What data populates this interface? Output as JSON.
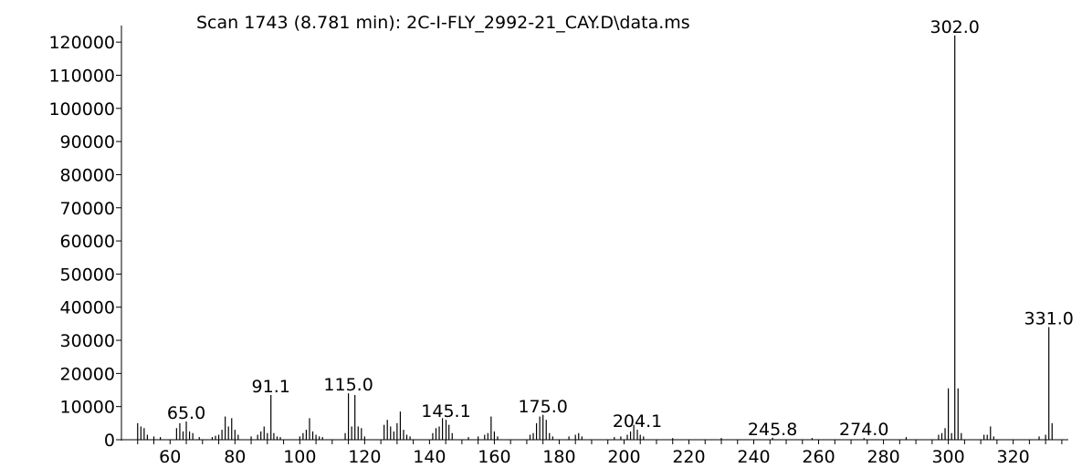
{
  "chart_data": {
    "type": "bar",
    "title": "Scan 1743 (8.781 min): 2C-I-FLY_2992-21_CAY.D\\data.ms",
    "xlabel": "",
    "ylabel": "",
    "xlim": [
      45,
      337
    ],
    "ylim": [
      0,
      125000
    ],
    "x_ticks": [
      60,
      80,
      100,
      120,
      140,
      160,
      180,
      200,
      220,
      240,
      260,
      280,
      300,
      320
    ],
    "y_ticks": [
      0,
      10000,
      20000,
      30000,
      40000,
      50000,
      60000,
      70000,
      80000,
      90000,
      100000,
      110000,
      120000
    ],
    "peaks": [
      {
        "x": 50,
        "y": 5000
      },
      {
        "x": 51,
        "y": 4000
      },
      {
        "x": 52,
        "y": 3500
      },
      {
        "x": 53,
        "y": 1500
      },
      {
        "x": 55,
        "y": 1000
      },
      {
        "x": 57,
        "y": 800
      },
      {
        "x": 62,
        "y": 3500
      },
      {
        "x": 63,
        "y": 5000
      },
      {
        "x": 64,
        "y": 2500
      },
      {
        "x": 65,
        "y": 5500
      },
      {
        "x": 66,
        "y": 2500
      },
      {
        "x": 67,
        "y": 2000
      },
      {
        "x": 69,
        "y": 800
      },
      {
        "x": 73,
        "y": 800
      },
      {
        "x": 74,
        "y": 1200
      },
      {
        "x": 75,
        "y": 1500
      },
      {
        "x": 76,
        "y": 3000
      },
      {
        "x": 77,
        "y": 7000
      },
      {
        "x": 78,
        "y": 4000
      },
      {
        "x": 79,
        "y": 6500
      },
      {
        "x": 80,
        "y": 3000
      },
      {
        "x": 81,
        "y": 1500
      },
      {
        "x": 85,
        "y": 1000
      },
      {
        "x": 87,
        "y": 1500
      },
      {
        "x": 88,
        "y": 2500
      },
      {
        "x": 89,
        "y": 4000
      },
      {
        "x": 90,
        "y": 2000
      },
      {
        "x": 91.1,
        "y": 13500
      },
      {
        "x": 92,
        "y": 2000
      },
      {
        "x": 93,
        "y": 1000
      },
      {
        "x": 94,
        "y": 800
      },
      {
        "x": 100,
        "y": 1000
      },
      {
        "x": 101,
        "y": 2000
      },
      {
        "x": 102,
        "y": 3000
      },
      {
        "x": 103,
        "y": 6500
      },
      {
        "x": 104,
        "y": 2500
      },
      {
        "x": 105,
        "y": 1500
      },
      {
        "x": 106,
        "y": 1000
      },
      {
        "x": 107,
        "y": 800
      },
      {
        "x": 114,
        "y": 2000
      },
      {
        "x": 115,
        "y": 14000
      },
      {
        "x": 116,
        "y": 4000
      },
      {
        "x": 117,
        "y": 13500
      },
      {
        "x": 118,
        "y": 4000
      },
      {
        "x": 119,
        "y": 3500
      },
      {
        "x": 120,
        "y": 1000
      },
      {
        "x": 126,
        "y": 4500
      },
      {
        "x": 127,
        "y": 6000
      },
      {
        "x": 128,
        "y": 4000
      },
      {
        "x": 129,
        "y": 2500
      },
      {
        "x": 130,
        "y": 5000
      },
      {
        "x": 131,
        "y": 8500
      },
      {
        "x": 132,
        "y": 3000
      },
      {
        "x": 133,
        "y": 1500
      },
      {
        "x": 134,
        "y": 1000
      },
      {
        "x": 141,
        "y": 2000
      },
      {
        "x": 142,
        "y": 3500
      },
      {
        "x": 143,
        "y": 4000
      },
      {
        "x": 144,
        "y": 6500
      },
      {
        "x": 145.1,
        "y": 6000
      },
      {
        "x": 146,
        "y": 4500
      },
      {
        "x": 147,
        "y": 2000
      },
      {
        "x": 152,
        "y": 800
      },
      {
        "x": 155,
        "y": 1000
      },
      {
        "x": 157,
        "y": 1500
      },
      {
        "x": 158,
        "y": 2000
      },
      {
        "x": 159,
        "y": 7000
      },
      {
        "x": 160,
        "y": 2500
      },
      {
        "x": 161,
        "y": 1000
      },
      {
        "x": 171,
        "y": 1500
      },
      {
        "x": 172,
        "y": 2000
      },
      {
        "x": 173,
        "y": 5000
      },
      {
        "x": 174,
        "y": 7000
      },
      {
        "x": 175,
        "y": 7500
      },
      {
        "x": 176,
        "y": 6000
      },
      {
        "x": 177,
        "y": 2000
      },
      {
        "x": 178,
        "y": 1000
      },
      {
        "x": 183,
        "y": 1000
      },
      {
        "x": 185,
        "y": 1500
      },
      {
        "x": 186,
        "y": 2000
      },
      {
        "x": 187,
        "y": 1000
      },
      {
        "x": 197,
        "y": 800
      },
      {
        "x": 199,
        "y": 1000
      },
      {
        "x": 201,
        "y": 1500
      },
      {
        "x": 202,
        "y": 2500
      },
      {
        "x": 203,
        "y": 4500
      },
      {
        "x": 204.1,
        "y": 3000
      },
      {
        "x": 205,
        "y": 1500
      },
      {
        "x": 206,
        "y": 1000
      },
      {
        "x": 215,
        "y": 500
      },
      {
        "x": 230,
        "y": 500
      },
      {
        "x": 245.8,
        "y": 600
      },
      {
        "x": 258,
        "y": 500
      },
      {
        "x": 274,
        "y": 500
      },
      {
        "x": 287,
        "y": 800
      },
      {
        "x": 297,
        "y": 1500
      },
      {
        "x": 298,
        "y": 2000
      },
      {
        "x": 299,
        "y": 3500
      },
      {
        "x": 300,
        "y": 15500
      },
      {
        "x": 301,
        "y": 2000
      },
      {
        "x": 302,
        "y": 122000
      },
      {
        "x": 303,
        "y": 15500
      },
      {
        "x": 304,
        "y": 2000
      },
      {
        "x": 311,
        "y": 1500
      },
      {
        "x": 312,
        "y": 1500
      },
      {
        "x": 313,
        "y": 4000
      },
      {
        "x": 314,
        "y": 1000
      },
      {
        "x": 328,
        "y": 1000
      },
      {
        "x": 330,
        "y": 1500
      },
      {
        "x": 331,
        "y": 34000
      },
      {
        "x": 332,
        "y": 5000
      }
    ],
    "peak_labels": [
      {
        "x": 65,
        "y": 5500,
        "text": "65.0"
      },
      {
        "x": 91.1,
        "y": 13500,
        "text": "91.1"
      },
      {
        "x": 115,
        "y": 14000,
        "text": "115.0"
      },
      {
        "x": 145.1,
        "y": 6000,
        "text": "145.1"
      },
      {
        "x": 175,
        "y": 7500,
        "text": "175.0"
      },
      {
        "x": 204.1,
        "y": 3000,
        "text": "204.1"
      },
      {
        "x": 245.8,
        "y": 600,
        "text": "245.8"
      },
      {
        "x": 274,
        "y": 500,
        "text": "274.0"
      },
      {
        "x": 302,
        "y": 122000,
        "text": "302.0"
      },
      {
        "x": 331,
        "y": 34000,
        "text": "331.0"
      }
    ],
    "grid": false,
    "legend": false
  }
}
